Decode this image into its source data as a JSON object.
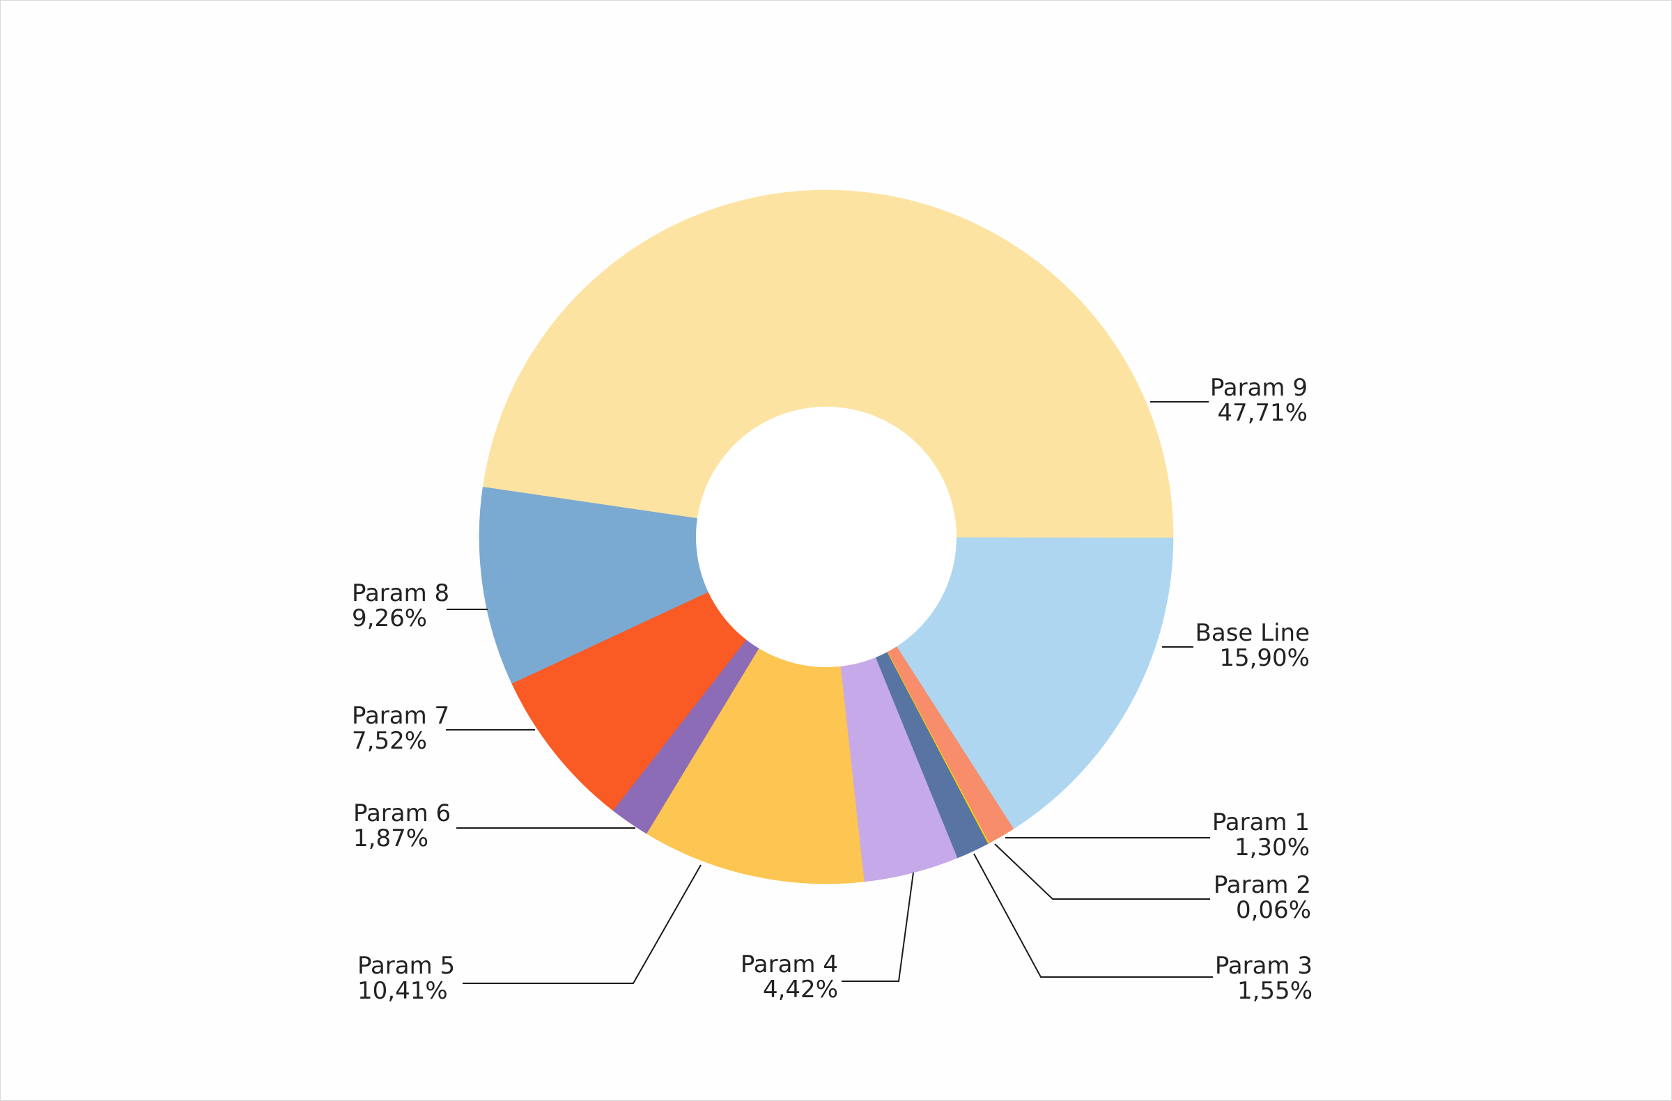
{
  "chart_data": {
    "type": "pie",
    "donut": true,
    "title": "",
    "legend": "none",
    "slices": [
      {
        "label": "Base Line",
        "value_text": "15,90%",
        "value": 15.9,
        "color": "#aed6f1"
      },
      {
        "label": "Param 1",
        "value_text": "1,30%",
        "value": 1.3,
        "color": "#f88d6b"
      },
      {
        "label": "Param 2",
        "value_text": "0,06%",
        "value": 0.06,
        "color": "#f5d800"
      },
      {
        "label": "Param 3",
        "value_text": "1,55%",
        "value": 1.55,
        "color": "#5874a2"
      },
      {
        "label": "Param 4",
        "value_text": "4,42%",
        "value": 4.42,
        "color": "#c6a9e8"
      },
      {
        "label": "Param 5",
        "value_text": "10,41%",
        "value": 10.41,
        "color": "#fdc551"
      },
      {
        "label": "Param 6",
        "value_text": "1,87%",
        "value": 1.87,
        "color": "#8c6cb7"
      },
      {
        "label": "Param 7",
        "value_text": "7,52%",
        "value": 7.52,
        "color": "#fa5a23"
      },
      {
        "label": "Param 8",
        "value_text": "9,26%",
        "value": 9.26,
        "color": "#7aaad2"
      },
      {
        "label": "Param 9",
        "value_text": "47,71%",
        "value": 47.71,
        "color": "#fde3a2"
      }
    ]
  }
}
